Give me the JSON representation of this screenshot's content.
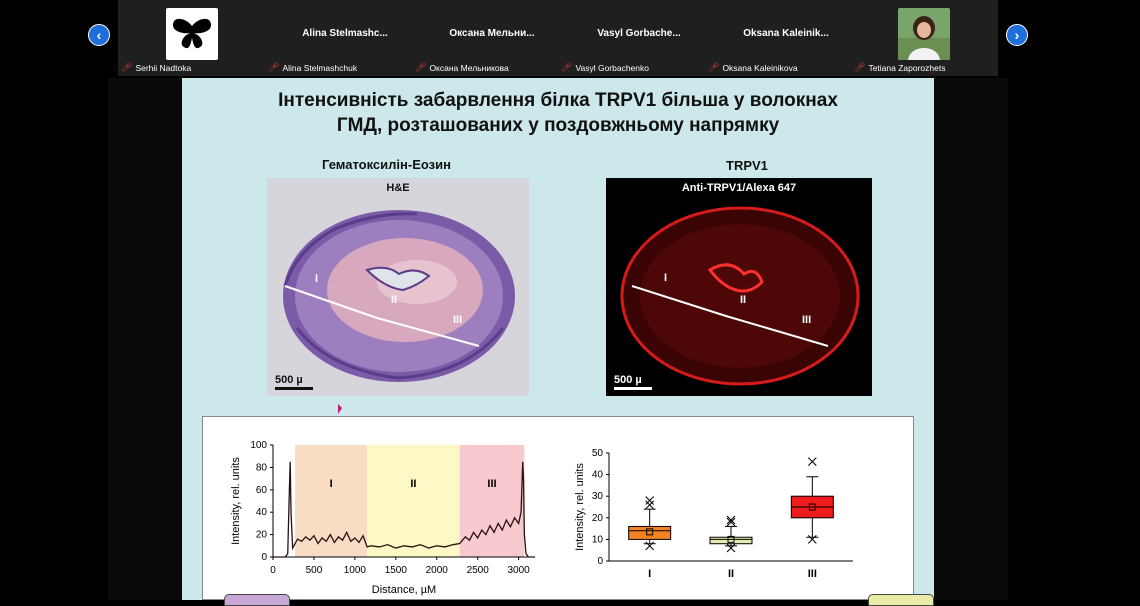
{
  "participants": [
    {
      "tile_name": "",
      "caption": "Serhii Nadtoka",
      "avatar": "butterfly-logo"
    },
    {
      "tile_name": "Alina Stelmashc...",
      "caption": "Alina Stelmashchuk"
    },
    {
      "tile_name": "Оксана Мельни...",
      "caption": "Оксана Мельникова"
    },
    {
      "tile_name": "Vasyl Gorbache...",
      "caption": "Vasyl Gorbachenko"
    },
    {
      "tile_name": "Oksana Kaleinik...",
      "caption": "Oksana Kaleinikova"
    },
    {
      "tile_name": "",
      "caption": "Tetiana Zaporozhets",
      "avatar": "photo"
    }
  ],
  "nav": {
    "prev_icon": "chevron-left-icon",
    "next_icon": "chevron-right-icon",
    "accent": "#1e6fd9"
  },
  "slide": {
    "title_line1": "Інтенсивність забарвлення білка TRPV1 більша у волокнах",
    "title_line2": "ГМД, розташованих у поздовжньому напрямку",
    "left_heading": "Гематоксилін-Еозин",
    "right_heading": "TRPV1",
    "left_image_label": "H&E",
    "right_image_label": "Anti-TRPV1/Alexa 647",
    "scale_label": "500 µ",
    "region_labels": [
      "I",
      "II",
      "III"
    ],
    "background": "#cde8ea"
  },
  "chart_data": [
    {
      "type": "line",
      "xlabel": "Distance, µM",
      "ylabel": "Intensity, rel. units",
      "xlim": [
        0,
        3200
      ],
      "ylim": [
        0,
        100
      ],
      "xticks": [
        0,
        500,
        1000,
        1500,
        2000,
        2500,
        3000
      ],
      "yticks": [
        0,
        20,
        40,
        60,
        80,
        100
      ],
      "regions": [
        {
          "label": "I",
          "from": 270,
          "to": 1150,
          "color": "#f9dcc4"
        },
        {
          "label": "II",
          "from": 1150,
          "to": 2280,
          "color": "#fcf9c6"
        },
        {
          "label": "III",
          "from": 2280,
          "to": 3070,
          "color": "#f9c9d0"
        }
      ],
      "series": [
        {
          "x": [
            0,
            150,
            180,
            200,
            210,
            220,
            240,
            270,
            300,
            350,
            400,
            450,
            500,
            550,
            600,
            650,
            700,
            750,
            800,
            850,
            900,
            950,
            1000,
            1050,
            1100,
            1150,
            1200,
            1300,
            1400,
            1500,
            1600,
            1700,
            1800,
            1900,
            2000,
            2100,
            2200,
            2280,
            2350,
            2400,
            2450,
            2500,
            2550,
            2600,
            2650,
            2700,
            2750,
            2800,
            2850,
            2900,
            2950,
            3000,
            3030,
            3050,
            3060,
            3070,
            3090,
            3120,
            3200
          ],
          "y": [
            0,
            0,
            3,
            60,
            85,
            40,
            8,
            12,
            16,
            14,
            18,
            15,
            19,
            12,
            17,
            14,
            20,
            13,
            18,
            15,
            22,
            14,
            17,
            13,
            19,
            9,
            10,
            9,
            11,
            8,
            10,
            9,
            11,
            8,
            10,
            9,
            11,
            12,
            18,
            15,
            22,
            17,
            24,
            20,
            28,
            22,
            30,
            24,
            33,
            27,
            35,
            30,
            40,
            85,
            70,
            20,
            3,
            0,
            0
          ]
        }
      ]
    },
    {
      "type": "box",
      "ylabel": "Intensity, rel. units",
      "ylim": [
        0,
        50
      ],
      "yticks": [
        0,
        10,
        20,
        30,
        40,
        50
      ],
      "categories": [
        "I",
        "II",
        "III"
      ],
      "boxes": [
        {
          "q1": 10,
          "median": 14,
          "q3": 16,
          "mean": 13.5,
          "whisker_low": 8,
          "whisker_high": 24,
          "outliers": [
            28,
            26,
            7
          ],
          "color": "#f58220"
        },
        {
          "q1": 8,
          "median": 10,
          "q3": 11,
          "mean": 10,
          "whisker_low": 7,
          "whisker_high": 16,
          "outliers": [
            19,
            18,
            6
          ],
          "color": "#e7ebb0"
        },
        {
          "q1": 20,
          "median": 25,
          "q3": 30,
          "mean": 25,
          "whisker_low": 11,
          "whisker_high": 39,
          "outliers": [
            46,
            10
          ],
          "color": "#ee1c1c"
        }
      ]
    }
  ]
}
